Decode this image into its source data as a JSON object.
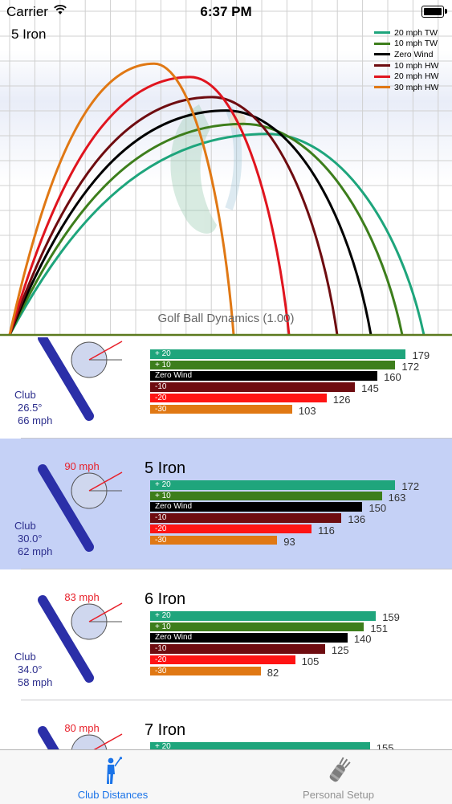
{
  "status_bar": {
    "carrier": "Carrier",
    "time": "6:37 PM"
  },
  "chart": {
    "title": "5 Iron",
    "watermark": "Golf Ball Dynamics (1.00)",
    "legend": [
      {
        "label": "20 mph TW",
        "color": "#1ea57c"
      },
      {
        "label": "10 mph TW",
        "color": "#3d7e1c"
      },
      {
        "label": "Zero Wind",
        "color": "#000000"
      },
      {
        "label": "10 mph HW",
        "color": "#6e0c10"
      },
      {
        "label": "20 mph HW",
        "color": "#e0141e"
      },
      {
        "label": "30 mph HW",
        "color": "#e07814"
      }
    ]
  },
  "chart_data": {
    "type": "line",
    "title": "5 Iron",
    "xlabel": "",
    "ylabel": "",
    "grid": true,
    "legend_position": "top-right",
    "series": [
      {
        "name": "20 mph TW",
        "color": "#1ea57c",
        "carry": 172,
        "apex_x": 107,
        "apex_y": 0.6
      },
      {
        "name": "10 mph TW",
        "color": "#3d7e1c",
        "carry": 163,
        "apex_x": 97,
        "apex_y": 0.63
      },
      {
        "name": "Zero Wind",
        "color": "#000000",
        "carry": 150,
        "apex_x": 90,
        "apex_y": 0.67
      },
      {
        "name": "10 mph HW",
        "color": "#6e0c10",
        "carry": 136,
        "apex_x": 84,
        "apex_y": 0.71
      },
      {
        "name": "20 mph HW",
        "color": "#e0141e",
        "carry": 116,
        "apex_x": 75,
        "apex_y": 0.77
      },
      {
        "name": "30 mph HW",
        "color": "#e07814",
        "carry": 93,
        "apex_x": 60,
        "apex_y": 0.81
      }
    ]
  },
  "bar_colors": [
    "#1fa57c",
    "#3d7e1c",
    "#000000",
    "#6e0c10",
    "#ff1414",
    "#e07814"
  ],
  "rows": [
    {
      "name": "",
      "ball_speed": "",
      "club_label": "Club",
      "loft": "26.5°",
      "club_speed": "66 mph",
      "selected": false,
      "bars": [
        {
          "label": "+ 20",
          "value": "179",
          "distance": 179
        },
        {
          "label": "+ 10",
          "value": "172",
          "distance": 172
        },
        {
          "label": "Zero Wind",
          "value": "160",
          "distance": 160
        },
        {
          "label": "-10",
          "value": "145",
          "distance": 145
        },
        {
          "label": "-20",
          "value": "126",
          "distance": 126
        },
        {
          "label": "-30",
          "value": "103",
          "distance": 103
        }
      ]
    },
    {
      "name": "5 Iron",
      "ball_speed": "90 mph",
      "club_label": "Club",
      "loft": "30.0°",
      "club_speed": "62 mph",
      "selected": true,
      "bars": [
        {
          "label": "+ 20",
          "value": "172",
          "distance": 172
        },
        {
          "label": "+ 10",
          "value": "163",
          "distance": 163
        },
        {
          "label": "Zero Wind",
          "value": "150",
          "distance": 150
        },
        {
          "label": "-10",
          "value": "136",
          "distance": 136
        },
        {
          "label": "-20",
          "value": "116",
          "distance": 116
        },
        {
          "label": "-30",
          "value": "93",
          "distance": 93
        }
      ]
    },
    {
      "name": "6 Iron",
      "ball_speed": "83 mph",
      "club_label": "Club",
      "loft": "34.0°",
      "club_speed": "58 mph",
      "selected": false,
      "bars": [
        {
          "label": "+ 20",
          "value": "159",
          "distance": 159
        },
        {
          "label": "+ 10",
          "value": "151",
          "distance": 151
        },
        {
          "label": "Zero Wind",
          "value": "140",
          "distance": 140
        },
        {
          "label": "-10",
          "value": "125",
          "distance": 125
        },
        {
          "label": "-20",
          "value": "105",
          "distance": 105
        },
        {
          "label": "-30",
          "value": "82",
          "distance": 82
        }
      ]
    },
    {
      "name": "7 Iron",
      "ball_speed": "80 mph",
      "club_label": "",
      "loft": "",
      "club_speed": "",
      "selected": false,
      "bars": [
        {
          "label": "+ 20",
          "value": "155",
          "distance": 155
        }
      ]
    }
  ],
  "tabbar": {
    "tabs": [
      {
        "label": "Club Distances",
        "icon": "golfer-icon",
        "active": true
      },
      {
        "label": "Personal Setup",
        "icon": "golf-bag-icon",
        "active": false
      }
    ]
  }
}
